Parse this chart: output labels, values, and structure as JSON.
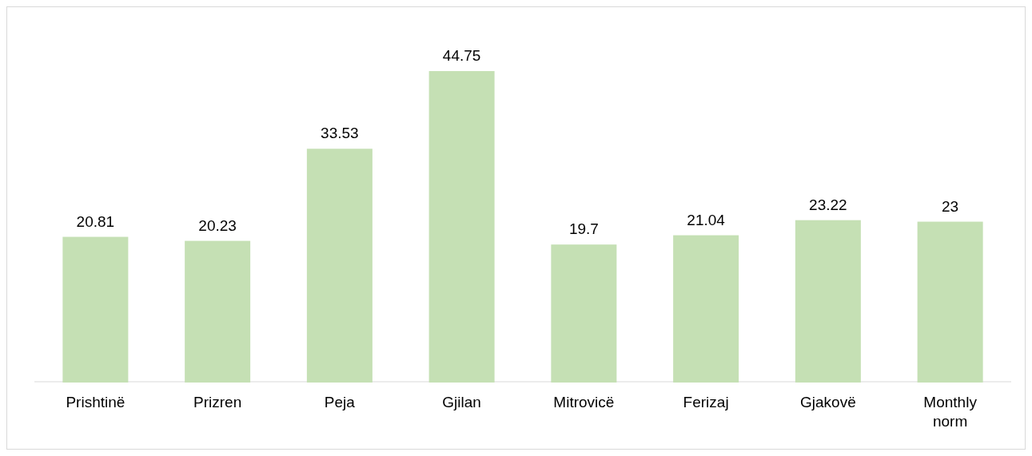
{
  "chart_data": {
    "type": "bar",
    "categories": [
      "Prishtinë",
      "Prizren",
      "Peja",
      "Gjilan",
      "Mitrovicë",
      "Ferizaj",
      "Gjakovë",
      "Monthly norm"
    ],
    "values": [
      20.81,
      20.23,
      33.53,
      44.75,
      19.7,
      21.04,
      23.22,
      23
    ],
    "color": "#c5e0b4",
    "data_labels": true
  }
}
